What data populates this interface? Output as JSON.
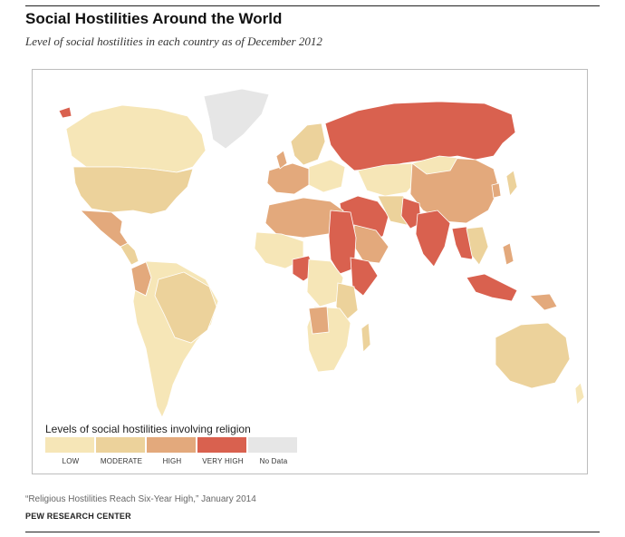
{
  "header": {
    "title": "Social Hostilities Around  the World",
    "subtitle": "Level of social hostilities in each country as of December 2012"
  },
  "colors": {
    "low": "#f6e6b7",
    "moderate": "#ecd29b",
    "high": "#e3a97c",
    "very_high": "#d9614f",
    "no_data": "#e6e6e6",
    "background": "#ffffff"
  },
  "legend": {
    "title": "Levels of social hostilities involving religion",
    "items": [
      {
        "label": "LOW",
        "color_key": "low"
      },
      {
        "label": "MODERATE",
        "color_key": "moderate"
      },
      {
        "label": "HIGH",
        "color_key": "high"
      },
      {
        "label": "VERY HIGH",
        "color_key": "very_high"
      },
      {
        "label": "No Data",
        "color_key": "no_data"
      }
    ]
  },
  "footer": {
    "source": "“Religious Hostilities Reach Six-Year High,” January 2014",
    "org": "PEW RESEARCH CENTER"
  }
}
